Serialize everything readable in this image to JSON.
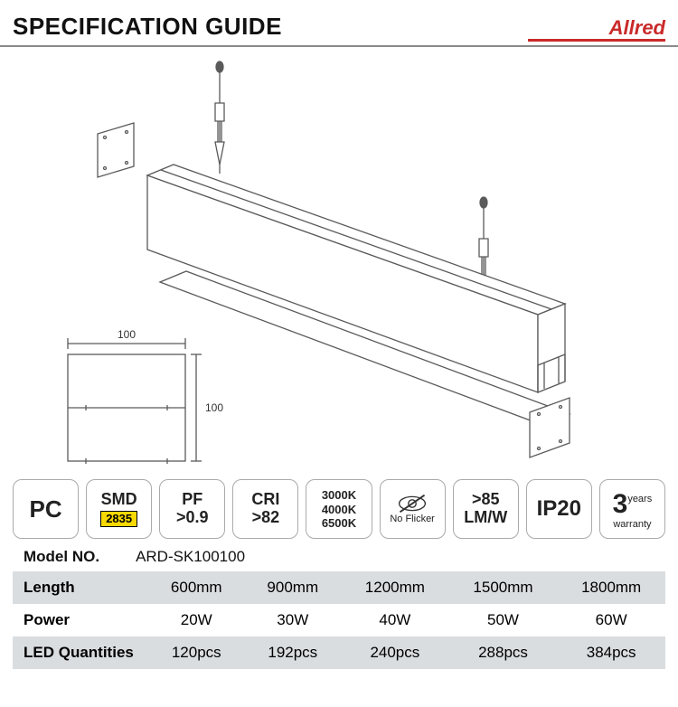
{
  "header": {
    "title": "SPECIFICATION GUIDE",
    "brand": "Allred",
    "brand_color": "#c92a2a"
  },
  "diagram": {
    "profile_width_label": "100",
    "profile_height_label": "100"
  },
  "badges": {
    "pc": "PC",
    "smd_top": "SMD",
    "smd_chip": "2835",
    "pf_top": "PF",
    "pf_bot": ">0.9",
    "cri_top": "CRI",
    "cri_bot": ">82",
    "cct1": "3000K",
    "cct2": "4000K",
    "cct3": "6500K",
    "noflicker": "No Flicker",
    "lmw_top": ">85",
    "lmw_bot": "LM/W",
    "ip": "IP20",
    "warranty_num": "3",
    "warranty_years": "years",
    "warranty_text": "warranty"
  },
  "model": {
    "label": "Model NO.",
    "value": "ARD-SK100100"
  },
  "table": {
    "rows": [
      {
        "label": "Length",
        "zebra": "gray",
        "cells": [
          "600mm",
          "900mm",
          "1200mm",
          "1500mm",
          "1800mm"
        ]
      },
      {
        "label": "Power",
        "zebra": "white",
        "cells": [
          "20W",
          "30W",
          "40W",
          "50W",
          "60W"
        ]
      },
      {
        "label": "LED Quantities",
        "zebra": "gray",
        "cells": [
          "120pcs",
          "192pcs",
          "240pcs",
          "288pcs",
          "384pcs"
        ]
      }
    ]
  },
  "colors": {
    "stroke": "#5a5a5a",
    "stroke_light": "#8a8a8a",
    "gray_row": "#dadde0"
  }
}
